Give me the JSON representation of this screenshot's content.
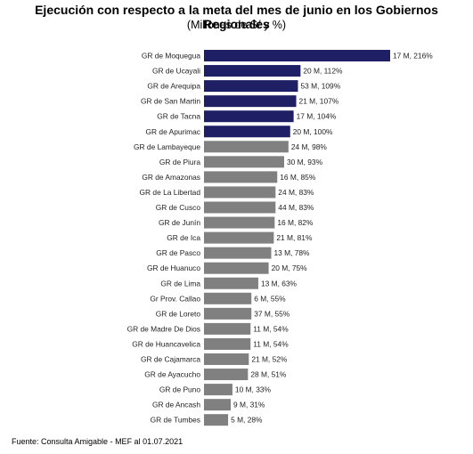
{
  "title": "Ejecución con respecto a la meta del mes de junio en los Gobiernos Regionales",
  "subtitle": "(Millones de S/ y %)",
  "source": "Fuente: Consulta Amigable - MEF al 01.07.2021",
  "colors": {
    "highlight": "#1f1f66",
    "default": "#808080"
  },
  "chart_data": {
    "type": "bar",
    "orientation": "horizontal",
    "categories": [
      "GR de Moquegua",
      "GR de Ucayali",
      "GR de Arequipa",
      "GR de San Martin",
      "GR de Tacna",
      "GR de Apurimac",
      "GR de Lambayeque",
      "GR de Piura",
      "GR de Amazonas",
      "GR de La Libertad",
      "GR de Cusco",
      "GR de Junín",
      "GR de Ica",
      "GR de Pasco",
      "GR de Huanuco",
      "GR de Lima",
      "Gr Prov. Callao",
      "GR de Loreto",
      "GR de Madre De Dios",
      "GR de Huancavelica",
      "GR de Cajamarca",
      "GR de Ayacucho",
      "GR de Puno",
      "GR de Ancash",
      "GR de Tumbes"
    ],
    "values": [
      216,
      112,
      109,
      107,
      104,
      100,
      98,
      93,
      85,
      83,
      83,
      82,
      81,
      78,
      75,
      63,
      55,
      55,
      54,
      54,
      52,
      51,
      33,
      31,
      28
    ],
    "amounts": [
      17,
      20,
      53,
      21,
      17,
      20,
      24,
      30,
      16,
      24,
      44,
      16,
      21,
      13,
      20,
      13,
      6,
      37,
      11,
      11,
      21,
      28,
      10,
      9,
      5
    ],
    "labels": [
      "17 M, 216%",
      "20 M, 112%",
      "53 M, 109%",
      "21 M, 107%",
      "17 M, 104%",
      "20 M, 100%",
      "24 M, 98%",
      "30 M, 93%",
      "16 M, 85%",
      "24 M, 83%",
      "44 M, 83%",
      "16 M, 82%",
      "21 M, 81%",
      "13 M, 78%",
      "20 M, 75%",
      "13 M, 63%",
      "6 M, 55%",
      "37 M, 55%",
      "11 M, 54%",
      "11 M, 54%",
      "21 M, 52%",
      "28 M, 51%",
      "10 M, 33%",
      "9 M, 31%",
      "5 M, 28%"
    ],
    "highlighted_count": 6,
    "xlim": [
      0,
      216
    ],
    "grid": false,
    "legend": "none"
  }
}
